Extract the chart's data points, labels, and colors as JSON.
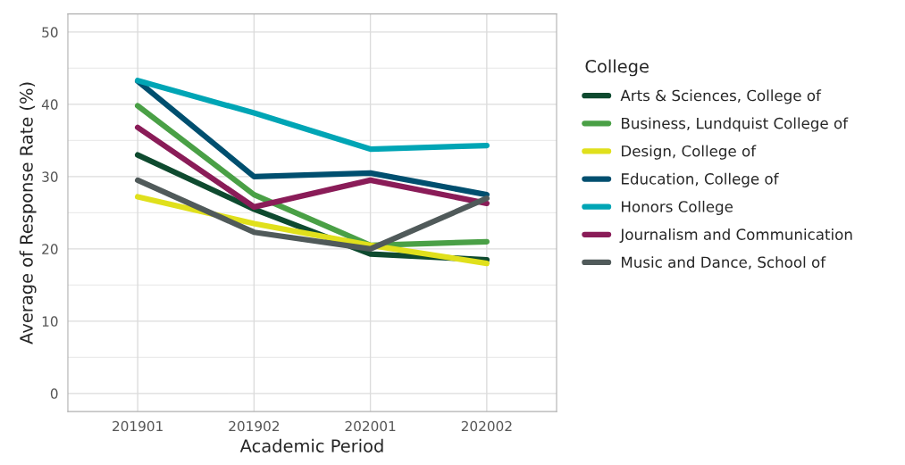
{
  "chart_data": {
    "type": "line",
    "xlabel": "Academic Period",
    "ylabel": "Average of Response Rate (%)",
    "legend_title": "College",
    "legend": "right",
    "grid": true,
    "categories": [
      "201901",
      "201902",
      "202001",
      "202002"
    ],
    "ylim": [
      -2.5,
      52.5
    ],
    "yticks": [
      0,
      10,
      20,
      30,
      40,
      50
    ],
    "series": [
      {
        "name": "Arts & Sciences, College of",
        "color": "#0e4a2f",
        "values": [
          33,
          25.5,
          19.3,
          18.5
        ]
      },
      {
        "name": "Business, Lundquist College of",
        "color": "#4aa046",
        "values": [
          39.8,
          27.5,
          20.5,
          21
        ]
      },
      {
        "name": "Design, College of",
        "color": "#e0e01c",
        "values": [
          27.2,
          23.5,
          20.5,
          18
        ]
      },
      {
        "name": "Education, College of",
        "color": "#004f6f",
        "values": [
          43.2,
          30,
          30.5,
          27.5
        ]
      },
      {
        "name": "Honors College",
        "color": "#00a5b5",
        "values": [
          43.3,
          38.8,
          33.8,
          34.3
        ]
      },
      {
        "name": "Journalism and Communication",
        "color": "#8a1c58",
        "values": [
          36.8,
          25.8,
          29.5,
          26.3
        ]
      },
      {
        "name": "Music and Dance, School of",
        "color": "#505a5a",
        "values": [
          29.5,
          22.3,
          20,
          27
        ]
      }
    ]
  }
}
